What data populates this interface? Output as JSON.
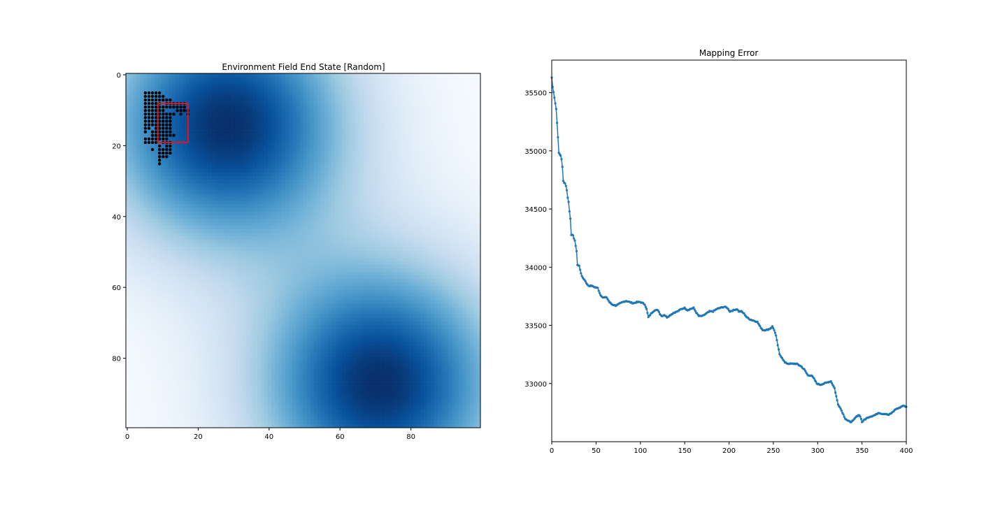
{
  "colors": {
    "colormap": "Blues",
    "visited_points": "#000000",
    "agent_box": "#e8141c",
    "line_series": "#1f77b4"
  },
  "chart_data": [
    {
      "type": "heatmap",
      "title": "Environment Field End State [Random]",
      "xlabel": "",
      "ylabel": "",
      "xlim": [
        0,
        99
      ],
      "ylim": [
        99,
        0
      ],
      "x_ticks": [
        "0",
        "20",
        "40",
        "60",
        "80"
      ],
      "y_ticks": [
        "0",
        "20",
        "40",
        "60",
        "80"
      ],
      "colormap": "Blues",
      "field_peaks": [
        {
          "x": 28,
          "y": 14,
          "intensity": 1.0
        },
        {
          "x": 71,
          "y": 87,
          "intensity": 1.0
        }
      ],
      "visited_points": [
        [
          5,
          5
        ],
        [
          6,
          5
        ],
        [
          7,
          5
        ],
        [
          8,
          5
        ],
        [
          9,
          5
        ],
        [
          5,
          6
        ],
        [
          6,
          6
        ],
        [
          7,
          6
        ],
        [
          8,
          6
        ],
        [
          9,
          6
        ],
        [
          10,
          6
        ],
        [
          5,
          7
        ],
        [
          6,
          7
        ],
        [
          7,
          7
        ],
        [
          8,
          7
        ],
        [
          9,
          7
        ],
        [
          10,
          7
        ],
        [
          11,
          7
        ],
        [
          12,
          7
        ],
        [
          5,
          8
        ],
        [
          6,
          8
        ],
        [
          7,
          8
        ],
        [
          8,
          8
        ],
        [
          9,
          8
        ],
        [
          11,
          8
        ],
        [
          12,
          8
        ],
        [
          13,
          8
        ],
        [
          14,
          8
        ],
        [
          15,
          8
        ],
        [
          16,
          8
        ],
        [
          5,
          9
        ],
        [
          6,
          9
        ],
        [
          7,
          9
        ],
        [
          8,
          9
        ],
        [
          9,
          9
        ],
        [
          10,
          9
        ],
        [
          11,
          9
        ],
        [
          12,
          9
        ],
        [
          13,
          9
        ],
        [
          14,
          9
        ],
        [
          15,
          9
        ],
        [
          16,
          9
        ],
        [
          5,
          10
        ],
        [
          6,
          10
        ],
        [
          7,
          10
        ],
        [
          8,
          10
        ],
        [
          9,
          10
        ],
        [
          10,
          10
        ],
        [
          14,
          10
        ],
        [
          15,
          10
        ],
        [
          16,
          10
        ],
        [
          17,
          10
        ],
        [
          5,
          11
        ],
        [
          6,
          11
        ],
        [
          7,
          11
        ],
        [
          8,
          11
        ],
        [
          9,
          11
        ],
        [
          10,
          11
        ],
        [
          11,
          11
        ],
        [
          12,
          11
        ],
        [
          13,
          11
        ],
        [
          15,
          11
        ],
        [
          17,
          11
        ],
        [
          5,
          12
        ],
        [
          6,
          12
        ],
        [
          7,
          12
        ],
        [
          8,
          12
        ],
        [
          9,
          12
        ],
        [
          10,
          12
        ],
        [
          11,
          12
        ],
        [
          12,
          12
        ],
        [
          5,
          13
        ],
        [
          6,
          13
        ],
        [
          7,
          13
        ],
        [
          8,
          13
        ],
        [
          9,
          13
        ],
        [
          10,
          13
        ],
        [
          11,
          13
        ],
        [
          12,
          13
        ],
        [
          5,
          14
        ],
        [
          6,
          14
        ],
        [
          7,
          14
        ],
        [
          8,
          14
        ],
        [
          9,
          14
        ],
        [
          10,
          14
        ],
        [
          11,
          14
        ],
        [
          12,
          14
        ],
        [
          5,
          15
        ],
        [
          6,
          15
        ],
        [
          8,
          15
        ],
        [
          9,
          15
        ],
        [
          10,
          15
        ],
        [
          11,
          15
        ],
        [
          12,
          15
        ],
        [
          5,
          16
        ],
        [
          7,
          16
        ],
        [
          8,
          16
        ],
        [
          9,
          16
        ],
        [
          10,
          16
        ],
        [
          11,
          16
        ],
        [
          12,
          16
        ],
        [
          7,
          17
        ],
        [
          8,
          17
        ],
        [
          9,
          17
        ],
        [
          10,
          17
        ],
        [
          11,
          17
        ],
        [
          12,
          17
        ],
        [
          13,
          17
        ],
        [
          5,
          18
        ],
        [
          6,
          18
        ],
        [
          7,
          18
        ],
        [
          8,
          18
        ],
        [
          9,
          18
        ],
        [
          10,
          18
        ],
        [
          11,
          18
        ],
        [
          5,
          19
        ],
        [
          6,
          19
        ],
        [
          7,
          19
        ],
        [
          8,
          19
        ],
        [
          10,
          19
        ],
        [
          11,
          19
        ],
        [
          12,
          19
        ],
        [
          9,
          20
        ],
        [
          11,
          20
        ],
        [
          12,
          20
        ],
        [
          7,
          21
        ],
        [
          9,
          21
        ],
        [
          10,
          21
        ],
        [
          11,
          21
        ],
        [
          12,
          21
        ],
        [
          9,
          22
        ],
        [
          10,
          22
        ],
        [
          11,
          22
        ],
        [
          12,
          22
        ],
        [
          9,
          23
        ],
        [
          10,
          23
        ],
        [
          11,
          23
        ],
        [
          9,
          24
        ],
        [
          9,
          25
        ]
      ],
      "agent_box": {
        "x0": 8.5,
        "x1": 17,
        "y0": 8,
        "y1": 19
      }
    },
    {
      "type": "line",
      "title": "Mapping Error",
      "xlabel": "",
      "ylabel": "",
      "xlim": [
        0,
        400
      ],
      "ylim": [
        32500,
        35780
      ],
      "x_ticks": [
        "0",
        "50",
        "100",
        "150",
        "200",
        "250",
        "300",
        "350",
        "400"
      ],
      "y_ticks": [
        "33000",
        "33500",
        "34000",
        "34500",
        "35000",
        "35500"
      ],
      "keypoints": [
        [
          0,
          35630
        ],
        [
          1,
          35550
        ],
        [
          3,
          35460
        ],
        [
          5,
          35360
        ],
        [
          6,
          35240
        ],
        [
          7,
          35120
        ],
        [
          8,
          34980
        ],
        [
          10,
          34960
        ],
        [
          11,
          34930
        ],
        [
          12,
          34860
        ],
        [
          13,
          34740
        ],
        [
          15,
          34720
        ],
        [
          16,
          34700
        ],
        [
          17,
          34660
        ],
        [
          18,
          34600
        ],
        [
          19,
          34560
        ],
        [
          20,
          34480
        ],
        [
          21,
          34420
        ],
        [
          22,
          34280
        ],
        [
          24,
          34270
        ],
        [
          25,
          34250
        ],
        [
          26,
          34230
        ],
        [
          27,
          34180
        ],
        [
          28,
          34140
        ],
        [
          29,
          34020
        ],
        [
          31,
          34010
        ],
        [
          32,
          33980
        ],
        [
          34,
          33920
        ],
        [
          36,
          33900
        ],
        [
          38,
          33880
        ],
        [
          40,
          33850
        ],
        [
          42,
          33840
        ],
        [
          45,
          33840
        ],
        [
          48,
          33830
        ],
        [
          52,
          33820
        ],
        [
          55,
          33760
        ],
        [
          58,
          33740
        ],
        [
          62,
          33740
        ],
        [
          65,
          33700
        ],
        [
          68,
          33680
        ],
        [
          72,
          33670
        ],
        [
          75,
          33680
        ],
        [
          80,
          33700
        ],
        [
          84,
          33710
        ],
        [
          88,
          33700
        ],
        [
          92,
          33690
        ],
        [
          96,
          33700
        ],
        [
          100,
          33700
        ],
        [
          103,
          33690
        ],
        [
          105,
          33680
        ],
        [
          107,
          33640
        ],
        [
          109,
          33570
        ],
        [
          111,
          33590
        ],
        [
          113,
          33610
        ],
        [
          116,
          33630
        ],
        [
          120,
          33630
        ],
        [
          122,
          33600
        ],
        [
          124,
          33580
        ],
        [
          127,
          33590
        ],
        [
          130,
          33570
        ],
        [
          134,
          33590
        ],
        [
          138,
          33610
        ],
        [
          142,
          33620
        ],
        [
          146,
          33640
        ],
        [
          150,
          33650
        ],
        [
          153,
          33630
        ],
        [
          156,
          33640
        ],
        [
          160,
          33650
        ],
        [
          163,
          33610
        ],
        [
          166,
          33580
        ],
        [
          170,
          33580
        ],
        [
          174,
          33600
        ],
        [
          178,
          33620
        ],
        [
          182,
          33620
        ],
        [
          186,
          33640
        ],
        [
          190,
          33650
        ],
        [
          195,
          33660
        ],
        [
          198,
          33650
        ],
        [
          201,
          33620
        ],
        [
          205,
          33630
        ],
        [
          209,
          33640
        ],
        [
          211,
          33620
        ],
        [
          214,
          33620
        ],
        [
          217,
          33600
        ],
        [
          220,
          33570
        ],
        [
          224,
          33550
        ],
        [
          228,
          33540
        ],
        [
          232,
          33530
        ],
        [
          235,
          33490
        ],
        [
          238,
          33460
        ],
        [
          242,
          33460
        ],
        [
          246,
          33470
        ],
        [
          249,
          33490
        ],
        [
          251,
          33460
        ],
        [
          253,
          33410
        ],
        [
          255,
          33330
        ],
        [
          257,
          33250
        ],
        [
          260,
          33220
        ],
        [
          263,
          33180
        ],
        [
          267,
          33170
        ],
        [
          271,
          33170
        ],
        [
          276,
          33170
        ],
        [
          281,
          33150
        ],
        [
          285,
          33120
        ],
        [
          289,
          33070
        ],
        [
          293,
          33070
        ],
        [
          296,
          33040
        ],
        [
          299,
          33000
        ],
        [
          303,
          32990
        ],
        [
          307,
          33000
        ],
        [
          311,
          33010
        ],
        [
          315,
          33020
        ],
        [
          317,
          32990
        ],
        [
          319,
          32960
        ],
        [
          321,
          32890
        ],
        [
          323,
          32820
        ],
        [
          325,
          32800
        ],
        [
          328,
          32750
        ],
        [
          331,
          32700
        ],
        [
          334,
          32680
        ],
        [
          337,
          32670
        ],
        [
          340,
          32680
        ],
        [
          343,
          32710
        ],
        [
          346,
          32730
        ],
        [
          348,
          32720
        ],
        [
          350,
          32670
        ],
        [
          353,
          32690
        ],
        [
          357,
          32710
        ],
        [
          361,
          32720
        ],
        [
          365,
          32730
        ],
        [
          369,
          32750
        ],
        [
          372,
          32740
        ],
        [
          376,
          32740
        ],
        [
          380,
          32730
        ],
        [
          384,
          32750
        ],
        [
          388,
          32780
        ],
        [
          392,
          32790
        ],
        [
          396,
          32810
        ],
        [
          400,
          32800
        ]
      ]
    }
  ]
}
